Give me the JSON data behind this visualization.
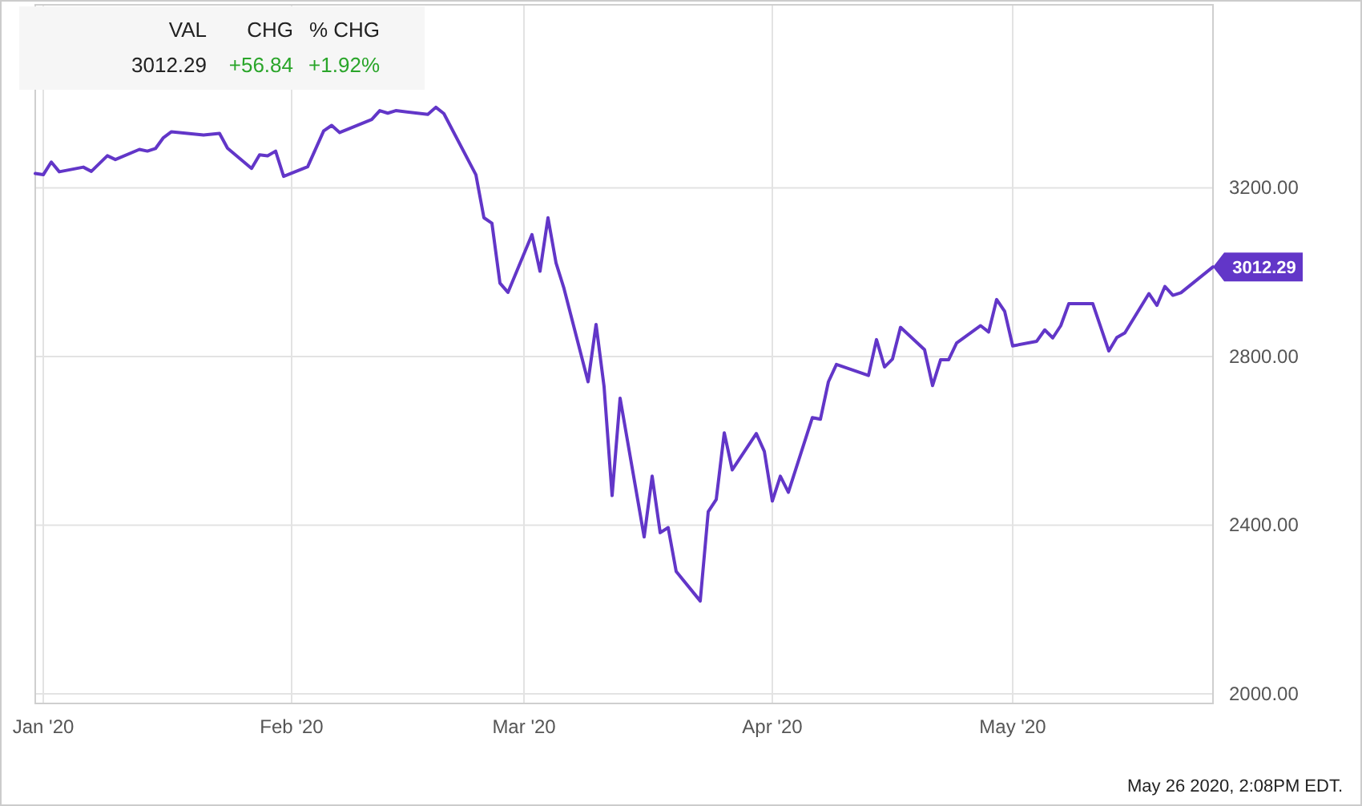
{
  "chart_data": {
    "type": "line",
    "x": [
      "2019-12-31",
      "2020-01-01",
      "2020-01-02",
      "2020-01-03",
      "2020-01-06",
      "2020-01-07",
      "2020-01-09",
      "2020-01-10",
      "2020-01-13",
      "2020-01-14",
      "2020-01-15",
      "2020-01-16",
      "2020-01-17",
      "2020-01-21",
      "2020-01-23",
      "2020-01-24",
      "2020-01-27",
      "2020-01-28",
      "2020-01-29",
      "2020-01-30",
      "2020-01-31",
      "2020-02-03",
      "2020-02-05",
      "2020-02-06",
      "2020-02-07",
      "2020-02-11",
      "2020-02-12",
      "2020-02-13",
      "2020-02-14",
      "2020-02-18",
      "2020-02-19",
      "2020-02-20",
      "2020-02-24",
      "2020-02-25",
      "2020-02-26",
      "2020-02-27",
      "2020-02-28",
      "2020-03-02",
      "2020-03-03",
      "2020-03-04",
      "2020-03-05",
      "2020-03-06",
      "2020-03-09",
      "2020-03-10",
      "2020-03-11",
      "2020-03-12",
      "2020-03-13",
      "2020-03-16",
      "2020-03-17",
      "2020-03-18",
      "2020-03-19",
      "2020-03-20",
      "2020-03-23",
      "2020-03-24",
      "2020-03-25",
      "2020-03-26",
      "2020-03-27",
      "2020-03-30",
      "2020-03-31",
      "2020-04-01",
      "2020-04-02",
      "2020-04-03",
      "2020-04-06",
      "2020-04-07",
      "2020-04-08",
      "2020-04-09",
      "2020-04-13",
      "2020-04-14",
      "2020-04-15",
      "2020-04-16",
      "2020-04-17",
      "2020-04-20",
      "2020-04-21",
      "2020-04-22",
      "2020-04-23",
      "2020-04-24",
      "2020-04-27",
      "2020-04-28",
      "2020-04-29",
      "2020-04-30",
      "2020-05-01",
      "2020-05-04",
      "2020-05-05",
      "2020-05-06",
      "2020-05-07",
      "2020-05-08",
      "2020-05-11",
      "2020-05-13",
      "2020-05-14",
      "2020-05-15",
      "2020-05-18",
      "2020-05-19",
      "2020-05-20",
      "2020-05-21",
      "2020-05-22",
      "2020-05-26"
    ],
    "series": [
      {
        "color": "#6236c8",
        "values": [
          3234,
          3231,
          3261,
          3238,
          3249,
          3239,
          3276,
          3267,
          3291,
          3287,
          3293,
          3319,
          3333,
          3325,
          3329,
          3294,
          3246,
          3278,
          3276,
          3287,
          3227,
          3250,
          3335,
          3348,
          3331,
          3362,
          3383,
          3377,
          3383,
          3374,
          3391,
          3376,
          3231,
          3129,
          3116,
          2974,
          2952,
          3089,
          3002,
          3129,
          3022,
          2961,
          2740,
          2876,
          2728,
          2470,
          2701,
          2372,
          2516,
          2382,
          2394,
          2290,
          2220,
          2432,
          2461,
          2619,
          2531,
          2617,
          2575,
          2457,
          2516,
          2478,
          2655,
          2651,
          2740,
          2781,
          2755,
          2840,
          2775,
          2794,
          2869,
          2816,
          2731,
          2792,
          2792,
          2832,
          2873,
          2858,
          2935,
          2907,
          2825,
          2836,
          2863,
          2844,
          2873,
          2925,
          2925,
          2813,
          2845,
          2856,
          2949,
          2921,
          2966,
          2945,
          2951,
          3012.29
        ],
        "value_labels": [
          null,
          null,
          null,
          null,
          null,
          null,
          null,
          null,
          null,
          null,
          null,
          null,
          null,
          null,
          null,
          null,
          null,
          null,
          null,
          null,
          null,
          null,
          null,
          null,
          null,
          null,
          null,
          null,
          null,
          null,
          null,
          null,
          null,
          null,
          null,
          null,
          null,
          null,
          null,
          null,
          null,
          null,
          null,
          null,
          null,
          null,
          null,
          null,
          null,
          null,
          null,
          null,
          null,
          null,
          null,
          null,
          null,
          null,
          null,
          null,
          null,
          null,
          null,
          null,
          null,
          null,
          null,
          null,
          null,
          null,
          null,
          null,
          null,
          null,
          null,
          null,
          null,
          null,
          null,
          null,
          null,
          null,
          null,
          null,
          null,
          null,
          null,
          null,
          null,
          null,
          null,
          null,
          null,
          null,
          null,
          "3012.29"
        ]
      }
    ],
    "xlim": [
      "2019-12-31",
      "2020-05-26"
    ],
    "xticks": [
      {
        "value": "2020-01-01",
        "label": "Jan '20"
      },
      {
        "value": "2020-02-01",
        "label": "Feb '20"
      },
      {
        "value": "2020-03-01",
        "label": "Mar '20"
      },
      {
        "value": "2020-04-01",
        "label": "Apr '20"
      },
      {
        "value": "2020-05-01",
        "label": "May '20"
      }
    ],
    "ylim": [
      1977,
      3634
    ],
    "yticks": [
      {
        "value": 2000,
        "label": "2000.00"
      },
      {
        "value": 2400,
        "label": "2400.00"
      },
      {
        "value": 2800,
        "label": "2800.00"
      },
      {
        "value": 3200,
        "label": "3200.00"
      }
    ],
    "grid": true,
    "marker": "none",
    "line_style": "solid",
    "annotations": [
      "VAL",
      "CHG",
      "% CHG",
      "3012.29",
      "+56.84",
      "+1.92%",
      "May 26 2020, 2:08PM EDT."
    ]
  }
}
